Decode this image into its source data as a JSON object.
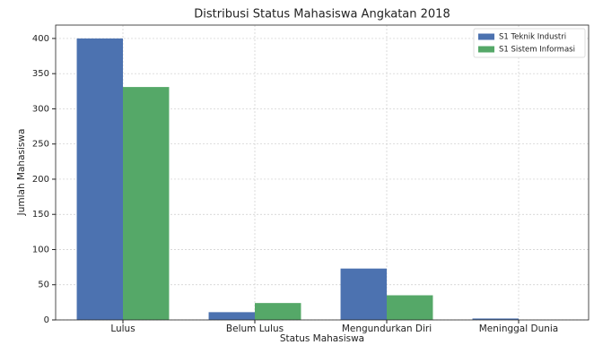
{
  "chart_data": {
    "type": "bar",
    "title": "Distribusi Status Mahasiswa Angkatan 2018",
    "x_label": "Status Mahasiswa",
    "y_label": "Jumlah Mahasiswa",
    "categories": [
      "Lulus",
      "Belum Lulus",
      "Mengundurkan Diri",
      "Meninggal Dunia"
    ],
    "series": [
      {
        "name": "S1 Teknik Industri",
        "color": "#4c72b0",
        "values": [
          400,
          11,
          73,
          2
        ]
      },
      {
        "name": "S1 Sistem Informasi",
        "color": "#55a868",
        "values": [
          331,
          24,
          35,
          0
        ]
      }
    ],
    "ylim": [
      0,
      419
    ],
    "yticks": [
      0,
      50,
      100,
      150,
      200,
      250,
      300,
      350,
      400
    ],
    "grid": true,
    "legend": "upper-right"
  }
}
